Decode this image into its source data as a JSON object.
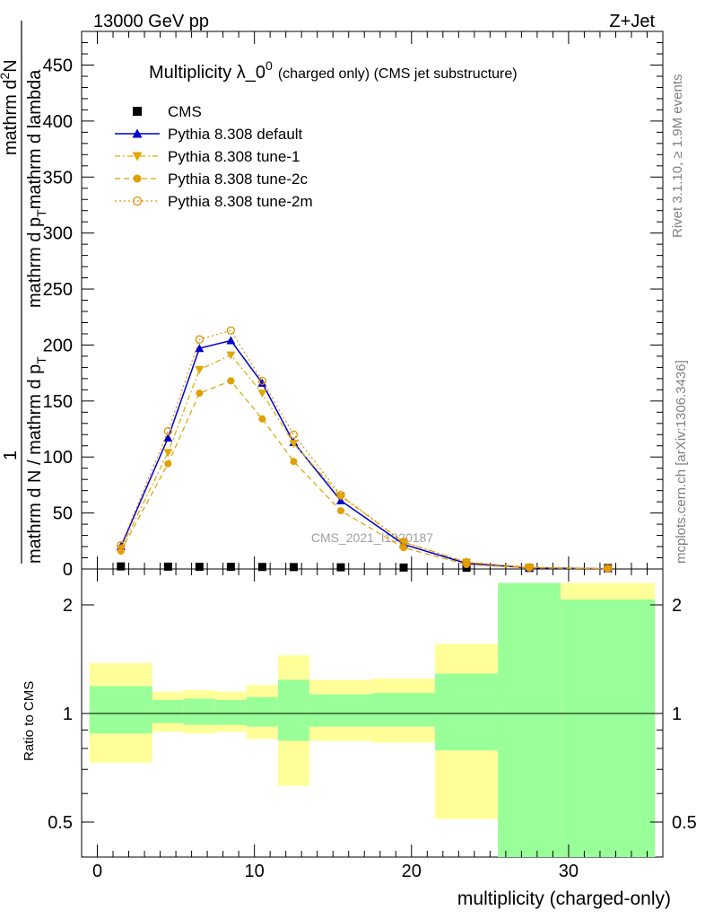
{
  "header": {
    "left": "13000 GeV pp",
    "right": "Z+Jet"
  },
  "side_labels": {
    "rivet": "Rivet 3.1.10, ≥ 1.9M events",
    "mcplots": "mcplots.cern.ch [arXiv:1306.3436]"
  },
  "watermark": "CMS_2021_I1920187",
  "chart_data": {
    "type": "line",
    "title_main": "Multiplicity λ_0",
    "title_sup": "0",
    "title_extra": "(charged only) (CMS jet substructure)",
    "ylabel": {
      "numerator": "1",
      "denominator": "mathrm d N / mathrm d p",
      "denominator_sub": "T",
      "right": "mathrm d",
      "right_sup": "2",
      "right_rest": "N",
      "right_den": "mathrm d p",
      "right_den_sub": "T",
      "right_den_rest": "mathrm d lambda"
    },
    "xlabel": "multiplicity (charged-only)",
    "xlim": [
      -1,
      36
    ],
    "ylim": [
      0,
      480
    ],
    "x_ticks": [
      0,
      10,
      20,
      30
    ],
    "y_ticks": [
      0,
      50,
      100,
      150,
      200,
      250,
      300,
      350,
      400,
      450
    ],
    "x": [
      1.5,
      4.5,
      6.5,
      8.5,
      10.5,
      12.5,
      15.5,
      19.5,
      23.5,
      27.5,
      32.5
    ],
    "cms_values": [
      1.5,
      1.3,
      1.2,
      1.1,
      1.0,
      0.9,
      0.7,
      0.5,
      0.3,
      0.15,
      0.05
    ],
    "series": [
      {
        "name": "CMS",
        "color": "#000000",
        "marker": "square",
        "dash": "none"
      },
      {
        "name": "Pythia 8.308 default",
        "color": "#0000cc",
        "marker": "triangle-up",
        "dash": "solid",
        "values": [
          20,
          117,
          197,
          204,
          166,
          113,
          61,
          22,
          5,
          1,
          0.2
        ]
      },
      {
        "name": "Pythia 8.308 tune-1",
        "color": "#e0a800",
        "marker": "triangle-down",
        "dash": "dashdot",
        "values": [
          18,
          104,
          178,
          191,
          157,
          112,
          65,
          24,
          6,
          1.5,
          0.3
        ]
      },
      {
        "name": "Pythia 8.308 tune-2c",
        "color": "#e0a000",
        "marker": "circle",
        "dash": "dashed",
        "values": [
          16,
          94,
          157,
          168,
          134,
          96,
          52,
          19,
          4,
          1,
          0.2
        ]
      },
      {
        "name": "Pythia 8.308 tune-2m",
        "color": "#e09000",
        "marker": "open-circle",
        "dash": "dotted",
        "values": [
          21,
          123,
          205,
          213,
          168,
          120,
          66,
          24,
          6,
          1.5,
          0.3
        ]
      }
    ],
    "ratio": {
      "ylabel": "Ratio to CMS",
      "ylim": [
        0.35,
        2.3
      ],
      "y_ticks": [
        0.5,
        1,
        2
      ],
      "bands": [
        {
          "x0": -0.5,
          "x1": 3.5,
          "yel_lo": 0.73,
          "yel_hi": 1.38,
          "grn_lo": 0.88,
          "grn_hi": 1.19
        },
        {
          "x0": 3.5,
          "x1": 5.5,
          "yel_lo": 0.89,
          "yel_hi": 1.15,
          "grn_lo": 0.94,
          "grn_hi": 1.09
        },
        {
          "x0": 5.5,
          "x1": 7.5,
          "yel_lo": 0.88,
          "yel_hi": 1.16,
          "grn_lo": 0.93,
          "grn_hi": 1.1
        },
        {
          "x0": 7.5,
          "x1": 9.5,
          "yel_lo": 0.89,
          "yel_hi": 1.15,
          "grn_lo": 0.93,
          "grn_hi": 1.09
        },
        {
          "x0": 9.5,
          "x1": 11.5,
          "yel_lo": 0.85,
          "yel_hi": 1.2,
          "grn_lo": 0.92,
          "grn_hi": 1.11
        },
        {
          "x0": 11.5,
          "x1": 13.5,
          "yel_lo": 0.63,
          "yel_hi": 1.45,
          "grn_lo": 0.84,
          "grn_hi": 1.24
        },
        {
          "x0": 13.5,
          "x1": 17.5,
          "yel_lo": 0.84,
          "yel_hi": 1.24,
          "grn_lo": 0.92,
          "grn_hi": 1.13
        },
        {
          "x0": 17.5,
          "x1": 21.5,
          "yel_lo": 0.83,
          "yel_hi": 1.25,
          "grn_lo": 0.92,
          "grn_hi": 1.14
        },
        {
          "x0": 21.5,
          "x1": 25.5,
          "yel_lo": 0.51,
          "yel_hi": 1.56,
          "grn_lo": 0.79,
          "grn_hi": 1.29
        },
        {
          "x0": 25.5,
          "x1": 29.5,
          "yel_lo": 0.35,
          "yel_hi": 2.3,
          "grn_lo": 0.35,
          "grn_hi": 2.3
        },
        {
          "x0": 29.5,
          "x1": 35.5,
          "yel_lo": 0.35,
          "yel_hi": 2.3,
          "grn_lo": 0.35,
          "grn_hi": 2.07
        }
      ]
    },
    "band_colors": {
      "yellow": "#ffff99",
      "green": "#99ff99"
    }
  }
}
